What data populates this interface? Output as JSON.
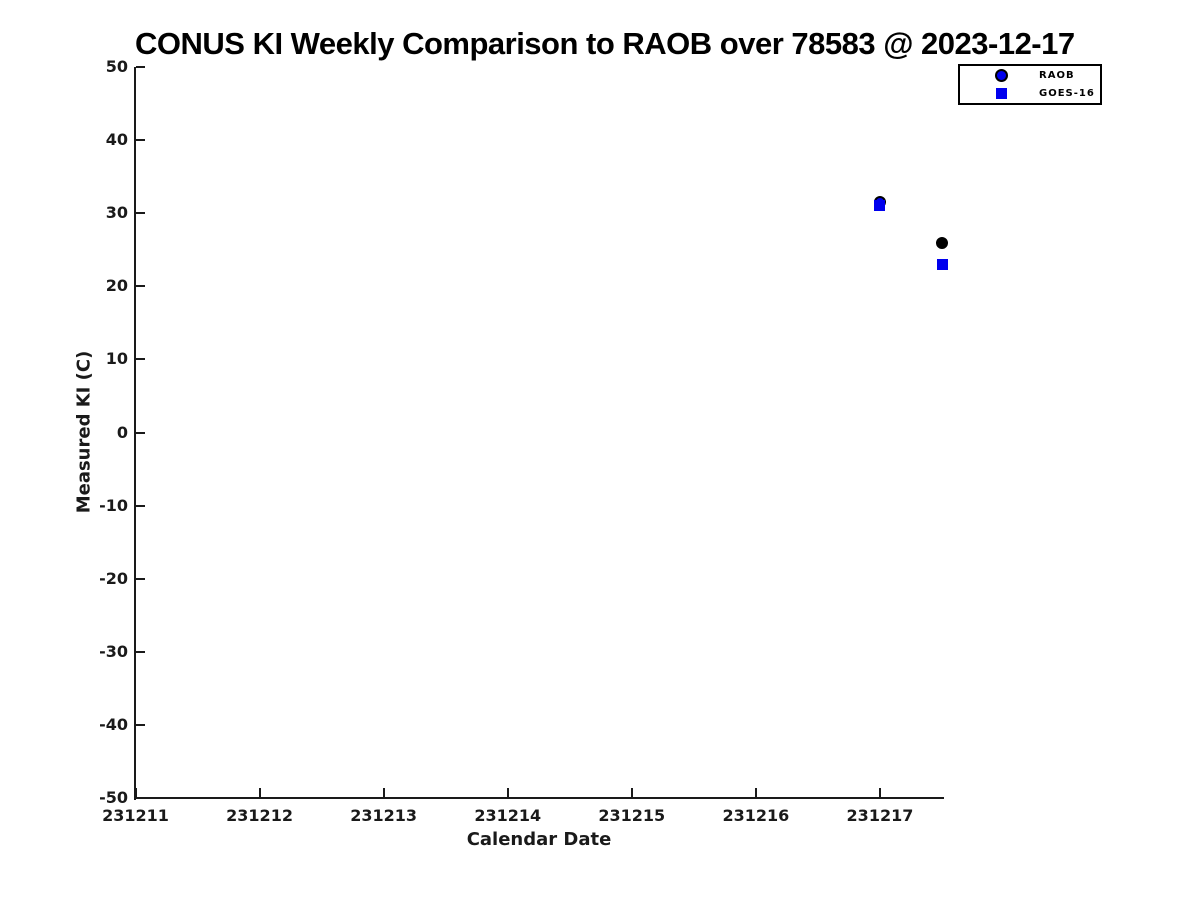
{
  "chart_data": {
    "type": "scatter",
    "title": "CONUS KI Weekly Comparison to RAOB over 78583 @ 2023-12-17",
    "xlabel": "Calendar Date",
    "ylabel": "Measured KI (C)",
    "xlim": [
      231211,
      231217.5
    ],
    "ylim": [
      -50,
      50
    ],
    "x_ticks": [
      "231211",
      "231212",
      "231213",
      "231214",
      "231215",
      "231216",
      "231217"
    ],
    "y_ticks": [
      "50",
      "40",
      "30",
      "20",
      "10",
      "0",
      "-10",
      "-20",
      "-30",
      "-40",
      "-50"
    ],
    "grid": false,
    "legend_position": "top-right-outside",
    "axis_color": "#1a1a1a",
    "accent_blue": "#0000ee",
    "series": [
      {
        "name": "RAOB",
        "marker": "circle",
        "fill": "#0000ee",
        "edge": "#000000",
        "in_legend": true,
        "points": [
          {
            "x": 231217.0,
            "y": 31.5
          }
        ]
      },
      {
        "name": "GOES-16",
        "marker": "square",
        "fill": "#0000ee",
        "edge": "#0000ee",
        "in_legend": true,
        "points": [
          {
            "x": 231217.0,
            "y": 31.1
          },
          {
            "x": 231217.5,
            "y": 23.0
          }
        ]
      },
      {
        "name": "unlabeled-black-dot",
        "marker": "circle",
        "fill": "#000000",
        "edge": "#000000",
        "in_legend": false,
        "points": [
          {
            "x": 231217.5,
            "y": 25.9
          }
        ]
      }
    ]
  }
}
